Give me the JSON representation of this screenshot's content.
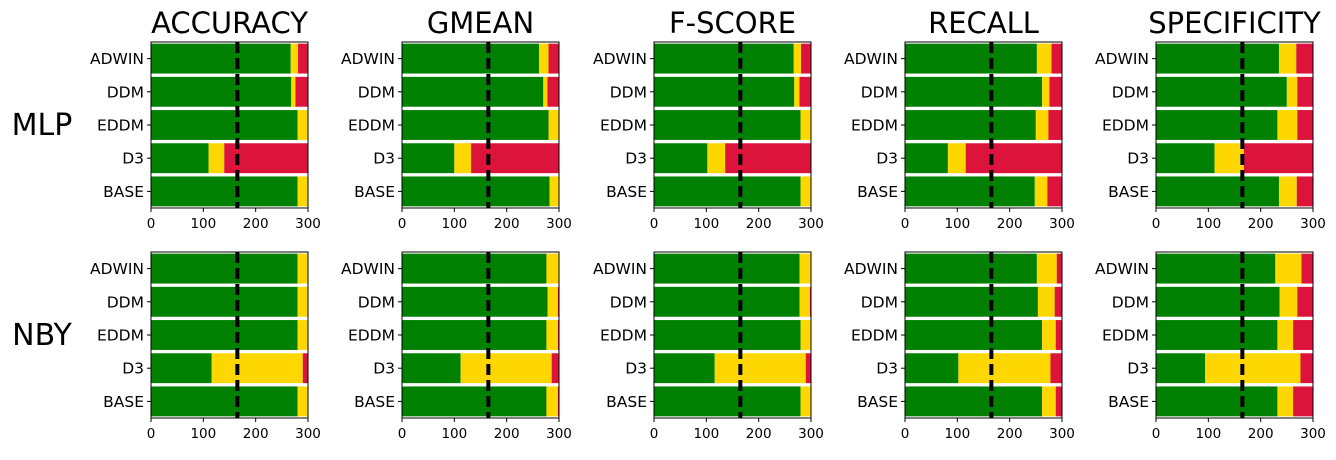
{
  "chart_data": {
    "type": "bar",
    "orientation": "horizontal",
    "stacked": true,
    "layout": "2x5 grid of panels",
    "column_titles": [
      "ACCURACY",
      "GMEAN",
      "F-SCORE",
      "RECALL",
      "SPECIFICITY"
    ],
    "row_labels": [
      "MLP",
      "NBY"
    ],
    "categories": [
      "ADWIN",
      "DDM",
      "EDDM",
      "D3",
      "BASE"
    ],
    "xlim": [
      0,
      300
    ],
    "xticks": [
      "0",
      "100",
      "200",
      "300"
    ],
    "reference_line": {
      "x": 165,
      "style": "dashed"
    },
    "grid": false,
    "series_colors": [
      "#008000",
      "#ffd700",
      "#dc143c"
    ],
    "panels": [
      {
        "row": "MLP",
        "column": "ACCURACY",
        "series": [
          {
            "values": [
              267,
              268,
              280,
              110,
              280
            ]
          },
          {
            "values": [
              14,
              8,
              20,
              30,
              20
            ]
          },
          {
            "values": [
              19,
              24,
              0,
              160,
              0
            ]
          }
        ]
      },
      {
        "row": "MLP",
        "column": "GMEAN",
        "series": [
          {
            "values": [
              262,
              270,
              280,
              100,
              282
            ]
          },
          {
            "values": [
              18,
              8,
              20,
              32,
              18
            ]
          },
          {
            "values": [
              20,
              22,
              0,
              168,
              0
            ]
          }
        ]
      },
      {
        "row": "MLP",
        "column": "F-SCORE",
        "series": [
          {
            "values": [
              267,
              268,
              280,
              102,
              280
            ]
          },
          {
            "values": [
              14,
              10,
              20,
              34,
              20
            ]
          },
          {
            "values": [
              19,
              22,
              0,
              164,
              0
            ]
          }
        ]
      },
      {
        "row": "MLP",
        "column": "RECALL",
        "series": [
          {
            "values": [
              252,
              262,
              250,
              82,
              248
            ]
          },
          {
            "values": [
              28,
              14,
              24,
              34,
              24
            ]
          },
          {
            "values": [
              20,
              24,
              26,
              184,
              28
            ]
          }
        ]
      },
      {
        "row": "MLP",
        "column": "SPECIFICITY",
        "series": [
          {
            "values": [
              235,
              250,
              232,
              112,
              235
            ]
          },
          {
            "values": [
              33,
              20,
              38,
              56,
              34
            ]
          },
          {
            "values": [
              32,
              30,
              30,
              132,
              31
            ]
          }
        ]
      },
      {
        "row": "NBY",
        "column": "ACCURACY",
        "series": [
          {
            "values": [
              280,
              280,
              280,
              116,
              280
            ]
          },
          {
            "values": [
              20,
              20,
              20,
              174,
              20
            ]
          },
          {
            "values": [
              0,
              0,
              0,
              10,
              0
            ]
          }
        ]
      },
      {
        "row": "NBY",
        "column": "GMEAN",
        "series": [
          {
            "values": [
              276,
              278,
              276,
              112,
              276
            ]
          },
          {
            "values": [
              24,
              20,
              22,
              174,
              22
            ]
          },
          {
            "values": [
              0,
              2,
              2,
              14,
              2
            ]
          }
        ]
      },
      {
        "row": "NBY",
        "column": "F-SCORE",
        "series": [
          {
            "values": [
              278,
              278,
              280,
              116,
              280
            ]
          },
          {
            "values": [
              22,
              20,
              20,
              174,
              20
            ]
          },
          {
            "values": [
              0,
              2,
              0,
              10,
              0
            ]
          }
        ]
      },
      {
        "row": "NBY",
        "column": "RECALL",
        "series": [
          {
            "values": [
              252,
              254,
              262,
              102,
              262
            ]
          },
          {
            "values": [
              38,
              32,
              26,
              176,
              26
            ]
          },
          {
            "values": [
              10,
              14,
              12,
              22,
              12
            ]
          }
        ]
      },
      {
        "row": "NBY",
        "column": "SPECIFICITY",
        "series": [
          {
            "values": [
              228,
              236,
              232,
              94,
              232
            ]
          },
          {
            "values": [
              50,
              34,
              30,
              182,
              30
            ]
          },
          {
            "values": [
              22,
              30,
              38,
              24,
              38
            ]
          }
        ]
      }
    ]
  }
}
